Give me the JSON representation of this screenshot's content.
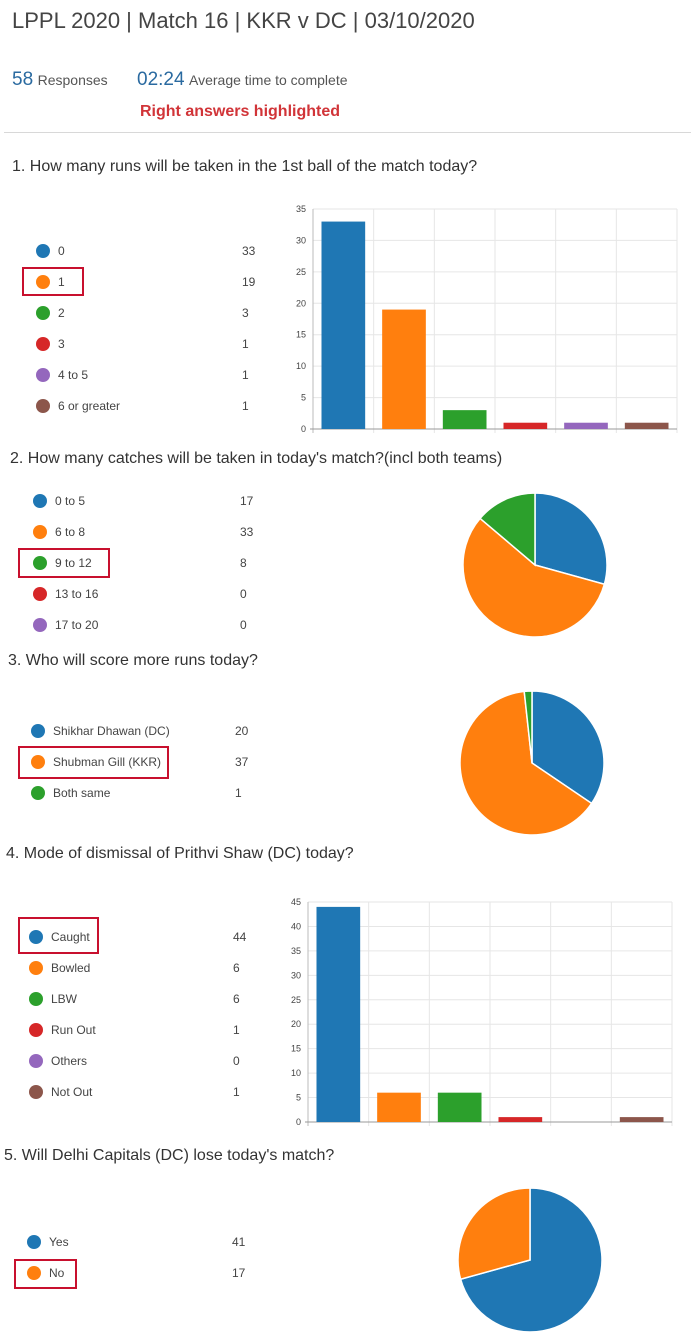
{
  "header": {
    "title": "LPPL 2020 | Match 16 | KKR v DC | 03/10/2020",
    "responses_count": "58",
    "responses_label": "Responses",
    "avg_time": "02:24",
    "avg_time_label": "Average time to complete",
    "highlight_note": "Right answers highlighted"
  },
  "colors": [
    "#1f77b4",
    "#ff7f0e",
    "#2ca02c",
    "#d62728",
    "#9467bd",
    "#8c564b"
  ],
  "questions": [
    {
      "number": "1.",
      "text": "How many runs will be taken in the 1st ball of the match today?",
      "options": [
        {
          "label": "0",
          "count": "33"
        },
        {
          "label": "1",
          "count": "19"
        },
        {
          "label": "2",
          "count": "3"
        },
        {
          "label": "3",
          "count": "1"
        },
        {
          "label": "4 to 5",
          "count": "1"
        },
        {
          "label": "6 or greater",
          "count": "1"
        }
      ],
      "correct_index": 1
    },
    {
      "number": "2.",
      "text": "How many catches will be taken in today's match?(incl both teams)",
      "options": [
        {
          "label": "0 to 5",
          "count": "17"
        },
        {
          "label": "6 to 8",
          "count": "33"
        },
        {
          "label": "9 to 12",
          "count": "8"
        },
        {
          "label": "13 to 16",
          "count": "0"
        },
        {
          "label": "17 to 20",
          "count": "0"
        }
      ],
      "correct_index": 2
    },
    {
      "number": "3.",
      "text": "Who will score more runs today?",
      "options": [
        {
          "label": "Shikhar Dhawan (DC)",
          "count": "20"
        },
        {
          "label": "Shubman Gill (KKR)",
          "count": "37"
        },
        {
          "label": "Both same",
          "count": "1"
        }
      ],
      "correct_index": 1
    },
    {
      "number": "4.",
      "text": "Mode of dismissal of Prithvi Shaw (DC) today?",
      "options": [
        {
          "label": "Caught",
          "count": "44"
        },
        {
          "label": "Bowled",
          "count": "6"
        },
        {
          "label": "LBW",
          "count": "6"
        },
        {
          "label": "Run Out",
          "count": "1"
        },
        {
          "label": "Others",
          "count": "0"
        },
        {
          "label": "Not Out",
          "count": "1"
        }
      ],
      "correct_index": 0
    },
    {
      "number": "5.",
      "text": "Will Delhi Capitals (DC) lose today's match?",
      "options": [
        {
          "label": "Yes",
          "count": "41"
        },
        {
          "label": "No",
          "count": "17"
        }
      ],
      "correct_index": 1
    }
  ],
  "chart_data": [
    {
      "type": "bar",
      "question": 1,
      "categories": [
        "0",
        "1",
        "2",
        "3",
        "4 to 5",
        "6 or greater"
      ],
      "values": [
        33,
        19,
        3,
        1,
        1,
        1
      ],
      "ylim": [
        0,
        35
      ],
      "yticks": [
        "0",
        "5",
        "10",
        "15",
        "20",
        "25",
        "30",
        "35"
      ],
      "grid": true,
      "legend": "left"
    },
    {
      "type": "pie",
      "question": 2,
      "categories": [
        "0 to 5",
        "6 to 8",
        "9 to 12",
        "13 to 16",
        "17 to 20"
      ],
      "values": [
        17,
        33,
        8,
        0,
        0
      ],
      "legend": "left"
    },
    {
      "type": "pie",
      "question": 3,
      "categories": [
        "Shikhar Dhawan (DC)",
        "Shubman Gill (KKR)",
        "Both same"
      ],
      "values": [
        20,
        37,
        1
      ],
      "legend": "left"
    },
    {
      "type": "bar",
      "question": 4,
      "categories": [
        "Caught",
        "Bowled",
        "LBW",
        "Run Out",
        "Others",
        "Not Out"
      ],
      "values": [
        44,
        6,
        6,
        1,
        0,
        1
      ],
      "ylim": [
        0,
        45
      ],
      "yticks": [
        "0",
        "5",
        "10",
        "15",
        "20",
        "25",
        "30",
        "35",
        "40",
        "45"
      ],
      "grid": true,
      "legend": "left"
    },
    {
      "type": "pie",
      "question": 5,
      "categories": [
        "Yes",
        "No"
      ],
      "values": [
        41,
        17
      ],
      "legend": "left"
    }
  ]
}
